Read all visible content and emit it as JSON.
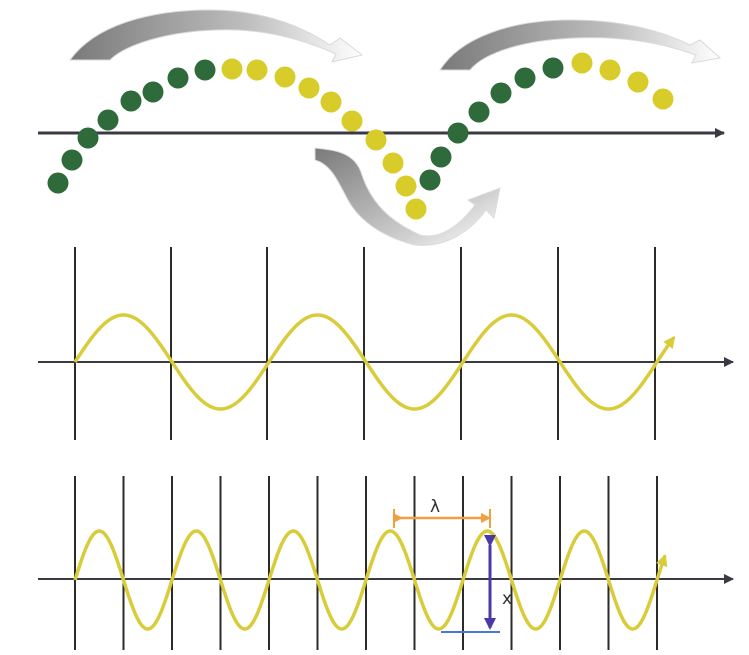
{
  "labels": {
    "wavelength": "λ",
    "amplitude": "x"
  },
  "colors": {
    "background": "#ffffff",
    "axis": "#3a3a44",
    "gridline": "#2b2b2b",
    "wave": "#d9cc3a",
    "dot_green": "#2f6b3a",
    "dot_yellow": "#d8cc2a",
    "arrow_fill": "#8d8d8d",
    "wavelength_marker": "#f0a040",
    "amplitude_marker": "#4a3aa8",
    "baseline_marker": "#4a78d8"
  },
  "panels": [
    {
      "name": "dot-wave",
      "description_shown": false
    },
    {
      "name": "low-frequency-wave",
      "cycles_shown": 3
    },
    {
      "name": "high-frequency-wave",
      "cycles_shown": 6
    }
  ]
}
